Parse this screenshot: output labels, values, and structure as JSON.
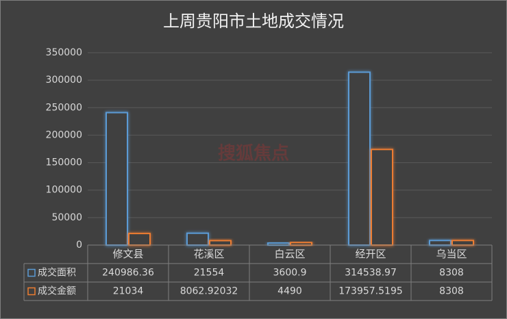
{
  "chart_data": {
    "type": "bar",
    "title": "上周贵阳市土地成交情况",
    "watermark": "搜狐焦点",
    "categories": [
      "修文县",
      "花溪区",
      "白云区",
      "经开区",
      "乌当区"
    ],
    "series": [
      {
        "name": "成交面积",
        "color": "#5b9bd5",
        "values": [
          240986.36,
          21554,
          3600.9,
          314538.97,
          8308
        ]
      },
      {
        "name": "成交金额",
        "color": "#ed7d31",
        "values": [
          21034,
          8062.92032,
          4490,
          173957.5195,
          8308
        ]
      }
    ],
    "ylim": [
      0,
      350000
    ],
    "yticks": [
      0,
      50000,
      100000,
      150000,
      200000,
      250000,
      300000,
      350000
    ],
    "grid": true
  }
}
